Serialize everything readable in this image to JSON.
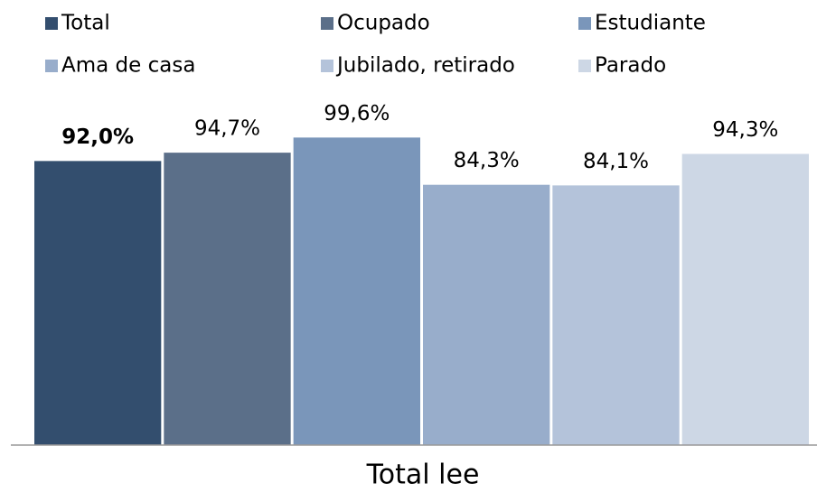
{
  "chart_data": {
    "type": "bar",
    "categories": [
      "Total lee"
    ],
    "series": [
      {
        "name": "Total",
        "color": "#334e6e",
        "values": [
          92.0
        ],
        "value_labels": [
          "92,0%"
        ]
      },
      {
        "name": "Ocupado",
        "color": "#5b6f89",
        "values": [
          94.7
        ],
        "value_labels": [
          "94,7%"
        ]
      },
      {
        "name": "Estudiante",
        "color": "#7a96ba",
        "values": [
          99.6
        ],
        "value_labels": [
          "99,6%"
        ]
      },
      {
        "name": "Ama de casa",
        "color": "#98adcb",
        "values": [
          84.3
        ],
        "value_labels": [
          "84,3%"
        ]
      },
      {
        "name": "Jubilado, retirado",
        "color": "#b4c3da",
        "values": [
          84.1
        ],
        "value_labels": [
          "84,1%"
        ]
      },
      {
        "name": "Parado",
        "color": "#cdd7e5",
        "values": [
          94.3
        ],
        "value_labels": [
          "94,3%"
        ]
      }
    ],
    "ylim": [
      0,
      100
    ],
    "legend": "top"
  }
}
